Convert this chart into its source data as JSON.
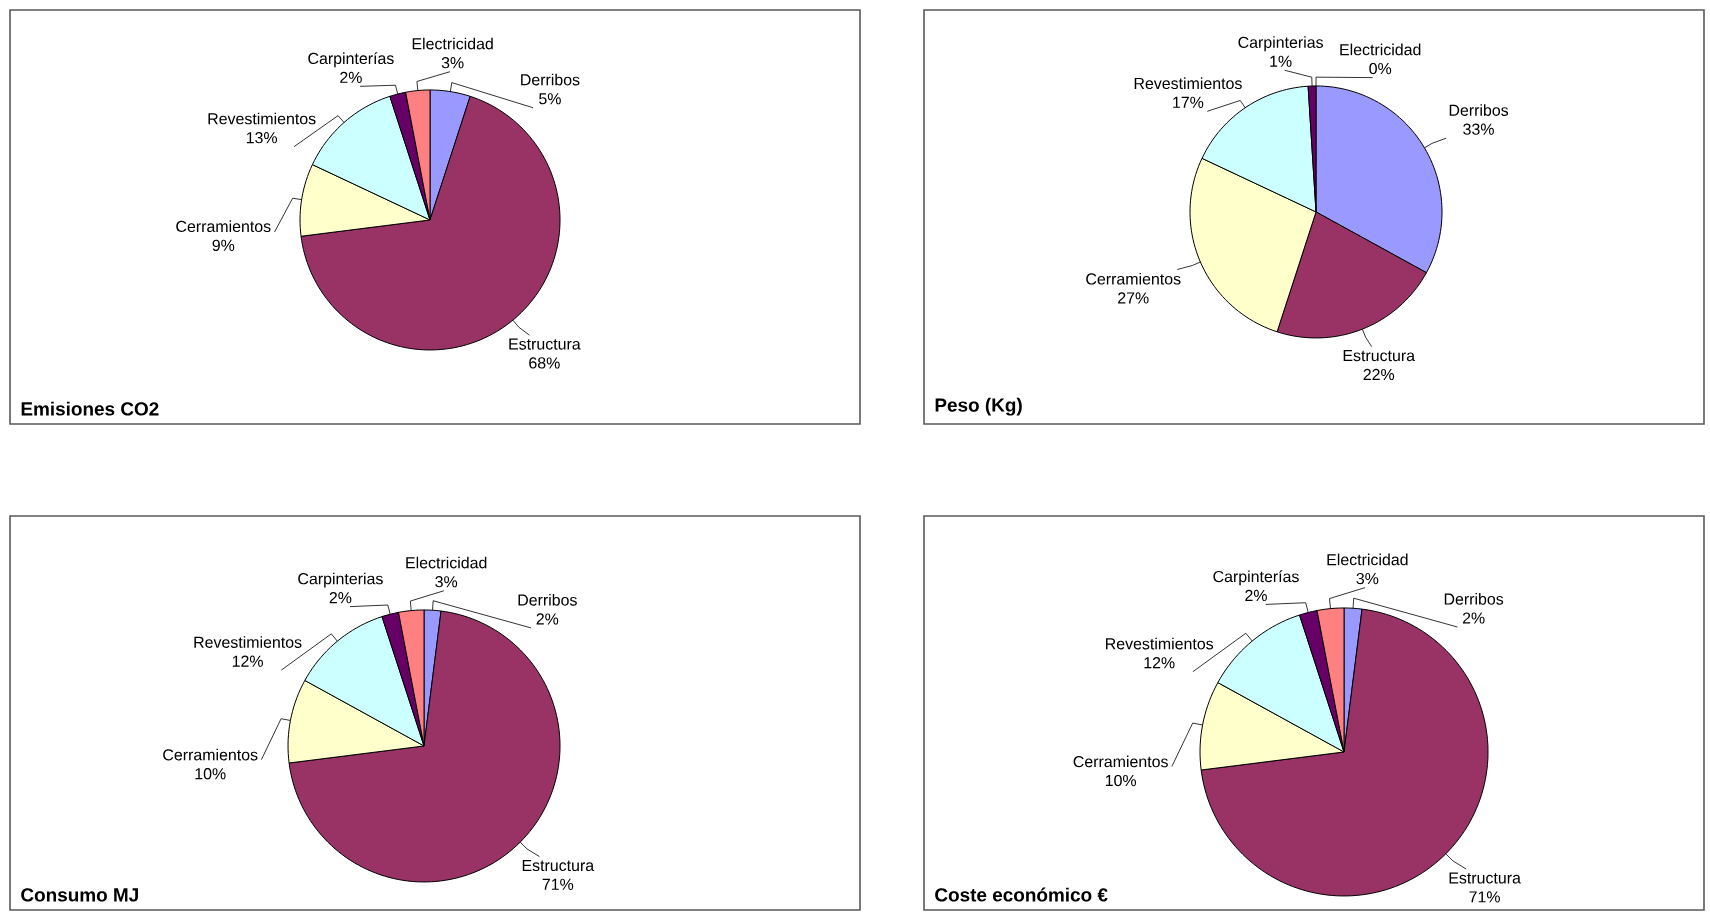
{
  "chart_data": [
    {
      "type": "pie",
      "title": "Emisiones CO2",
      "categories": [
        "Derribos",
        "Estructura",
        "Cerramientos",
        "Revestimientos",
        "Carpinterías",
        "Electricidad"
      ],
      "values": [
        5,
        68,
        9,
        13,
        2,
        3
      ],
      "value_labels": [
        "5%",
        "68%",
        "9%",
        "13%",
        "2%",
        "3%"
      ],
      "colors": [
        "#9999ff",
        "#993366",
        "#ffffcc",
        "#ccffff",
        "#660066",
        "#ff8080"
      ]
    },
    {
      "type": "pie",
      "title": "Peso (Kg)",
      "categories": [
        "Derribos",
        "Estructura",
        "Cerramientos",
        "Revestimientos",
        "Carpinterias",
        "Electricidad"
      ],
      "values": [
        33,
        22,
        27,
        17,
        1,
        0
      ],
      "value_labels": [
        "33%",
        "22%",
        "27%",
        "17%",
        "1%",
        "0%"
      ],
      "colors": [
        "#9999ff",
        "#993366",
        "#ffffcc",
        "#ccffff",
        "#660066",
        "#ff8080"
      ]
    },
    {
      "type": "pie",
      "title": "Consumo MJ",
      "categories": [
        "Derribos",
        "Estructura",
        "Cerramientos",
        "Revestimientos",
        "Carpinterias",
        "Electricidad"
      ],
      "values": [
        2,
        71,
        10,
        12,
        2,
        3
      ],
      "value_labels": [
        "2%",
        "71%",
        "10%",
        "12%",
        "2%",
        "3%"
      ],
      "colors": [
        "#9999ff",
        "#993366",
        "#ffffcc",
        "#ccffff",
        "#660066",
        "#ff8080"
      ]
    },
    {
      "type": "pie",
      "title": "Coste económico €",
      "categories": [
        "Derribos",
        "Estructura",
        "Cerramientos",
        "Revestimientos",
        "Carpinterías",
        "Electricidad"
      ],
      "values": [
        2,
        71,
        10,
        12,
        2,
        3
      ],
      "value_labels": [
        "2%",
        "71%",
        "10%",
        "12%",
        "2%",
        "3%"
      ],
      "colors": [
        "#9999ff",
        "#993366",
        "#ffffcc",
        "#ccffff",
        "#660066",
        "#ff8080"
      ]
    }
  ]
}
